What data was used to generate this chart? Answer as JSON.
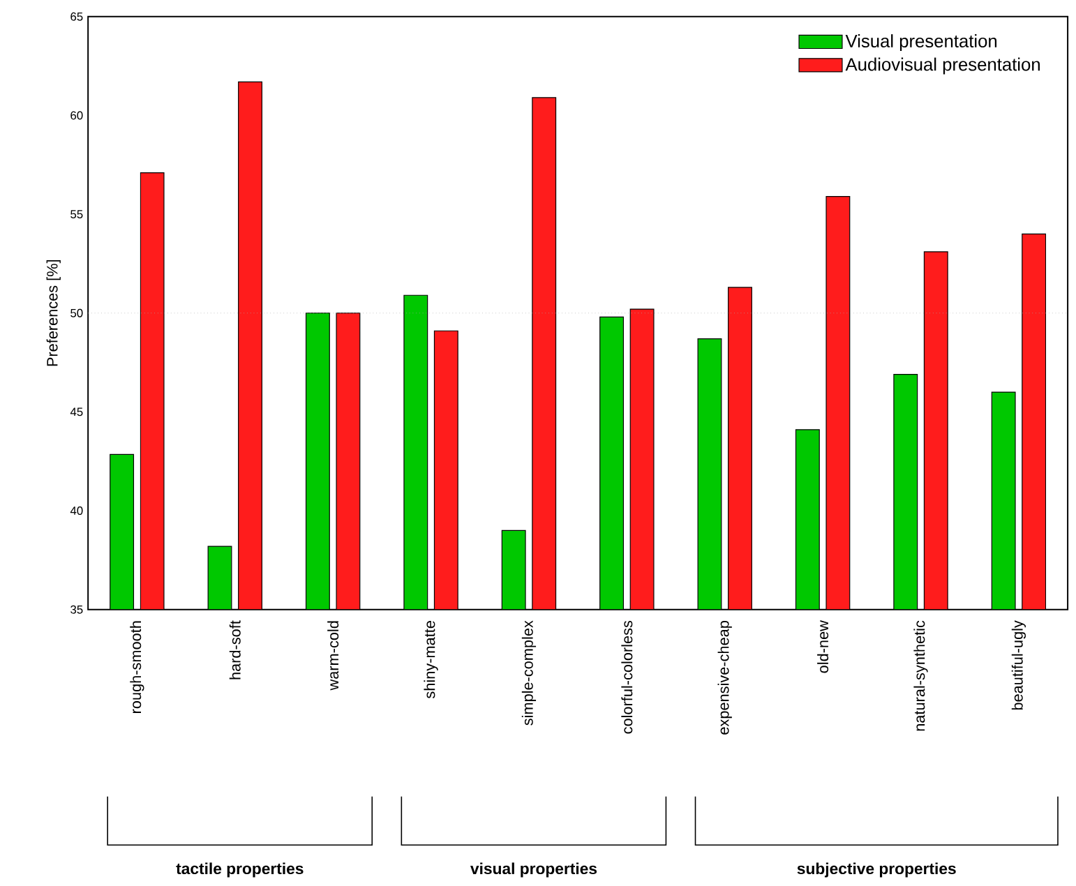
{
  "chart_data": {
    "type": "bar",
    "ylabel": "Preferences [%]",
    "categories": [
      "rough-smooth",
      "hard-soft",
      "warm-cold",
      "shiny-matte",
      "simple-complex",
      "colorful-colorless",
      "expensive-cheap",
      "old-new",
      "natural-synthetic",
      "beautiful-ugly"
    ],
    "series": [
      {
        "name": "Visual presentation",
        "color": "#00c800",
        "values": [
          42.85,
          38.2,
          50.0,
          50.9,
          39.0,
          49.8,
          48.7,
          44.1,
          46.9,
          46.0
        ]
      },
      {
        "name": "Audiovisual presentation",
        "color": "#ff1c1c",
        "values": [
          57.1,
          61.7,
          50.0,
          49.1,
          60.9,
          50.2,
          51.3,
          55.9,
          53.1,
          54.0
        ]
      }
    ],
    "ylim": [
      35,
      65
    ],
    "yticks": [
      35,
      40,
      45,
      50,
      55,
      60,
      65
    ],
    "ref_lines": [
      {
        "axis": "y",
        "value": 50,
        "color": "#aaaaaa",
        "line_style": "dotted"
      }
    ],
    "legend": "top right",
    "annotations": [
      "tactile properties",
      "visual properties",
      "subjective properties"
    ]
  }
}
